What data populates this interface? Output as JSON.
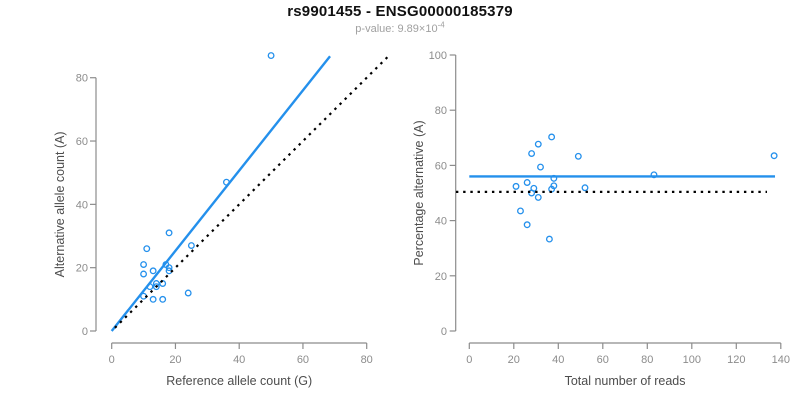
{
  "header": {
    "title": "rs9901455 - ENSG00000185379",
    "subtitle_prefix": "p-value: 9.89×10",
    "subtitle_exponent": "-4"
  },
  "colors": {
    "series_blue": "#2490ec",
    "identity_black": "#000000",
    "axis_gray": "#8c8c8c",
    "axis_title_gray": "#4d4d4d",
    "title_black": "#111111",
    "subtitle_gray": "#a0a0a0",
    "background": "#ffffff"
  },
  "chart_data": [
    {
      "id": "ref-vs-alt",
      "type": "scatter",
      "title": "",
      "xlabel": "Reference allele count (G)",
      "ylabel": "Alternative allele count (A)",
      "xlim": [
        0,
        88
      ],
      "ylim": [
        0,
        88
      ],
      "xticks": [
        0,
        20,
        40,
        60,
        80
      ],
      "yticks": [
        0,
        20,
        40,
        60,
        80
      ],
      "grid": false,
      "legend": "none",
      "points": [
        [
          50,
          87
        ],
        [
          36,
          47
        ],
        [
          18,
          31
        ],
        [
          25,
          27
        ],
        [
          11,
          26
        ],
        [
          10,
          21
        ],
        [
          17,
          21
        ],
        [
          18,
          20
        ],
        [
          18,
          19
        ],
        [
          13,
          19
        ],
        [
          10,
          18
        ],
        [
          12,
          14
        ],
        [
          14,
          14
        ],
        [
          14,
          15
        ],
        [
          16,
          15
        ],
        [
          10,
          11
        ],
        [
          13,
          10
        ],
        [
          16,
          10
        ],
        [
          24,
          12
        ]
      ],
      "lines": [
        {
          "name": "fit-line",
          "role": "allelic-imbalance-fit",
          "style": "solid",
          "color_key": "series_blue",
          "from": [
            0,
            0
          ],
          "to": [
            68.5,
            86.8
          ]
        },
        {
          "name": "identity-line",
          "role": "y-equals-x-reference",
          "style": "dotted",
          "color_key": "identity_black",
          "from": [
            1,
            1
          ],
          "to": [
            87.5,
            87.5
          ]
        }
      ]
    },
    {
      "id": "reads-vs-percentage",
      "type": "scatter",
      "title": "",
      "xlabel": "Total number of reads",
      "ylabel": "Percentage alternative (A)",
      "xlim": [
        0,
        140
      ],
      "ylim": [
        0,
        100
      ],
      "xticks": [
        0,
        20,
        40,
        60,
        80,
        100,
        120,
        140
      ],
      "yticks": [
        0,
        20,
        40,
        60,
        80,
        100
      ],
      "grid": false,
      "legend": "none",
      "points": [
        [
          137,
          63.5
        ],
        [
          83,
          56.6
        ],
        [
          49,
          63.3
        ],
        [
          52,
          51.9
        ],
        [
          37,
          70.3
        ],
        [
          31,
          67.7
        ],
        [
          38,
          55.3
        ],
        [
          38,
          52.6
        ],
        [
          37,
          51.4
        ],
        [
          32,
          59.4
        ],
        [
          28,
          64.3
        ],
        [
          26,
          53.8
        ],
        [
          28,
          50.0
        ],
        [
          29,
          51.7
        ],
        [
          31,
          48.4
        ],
        [
          21,
          52.4
        ],
        [
          23,
          43.5
        ],
        [
          26,
          38.5
        ],
        [
          36,
          33.3
        ]
      ],
      "lines": [
        {
          "name": "mean-line",
          "role": "mean-alternative-percentage",
          "style": "solid",
          "color_key": "series_blue",
          "from": [
            0,
            56
          ],
          "to": [
            137.4,
            56
          ]
        },
        {
          "name": "fifty-line",
          "role": "fifty-percent-reference",
          "style": "dotted",
          "color_key": "identity_black",
          "from": [
            -6,
            50.4
          ],
          "to": [
            133.8,
            50.4
          ]
        }
      ]
    }
  ]
}
